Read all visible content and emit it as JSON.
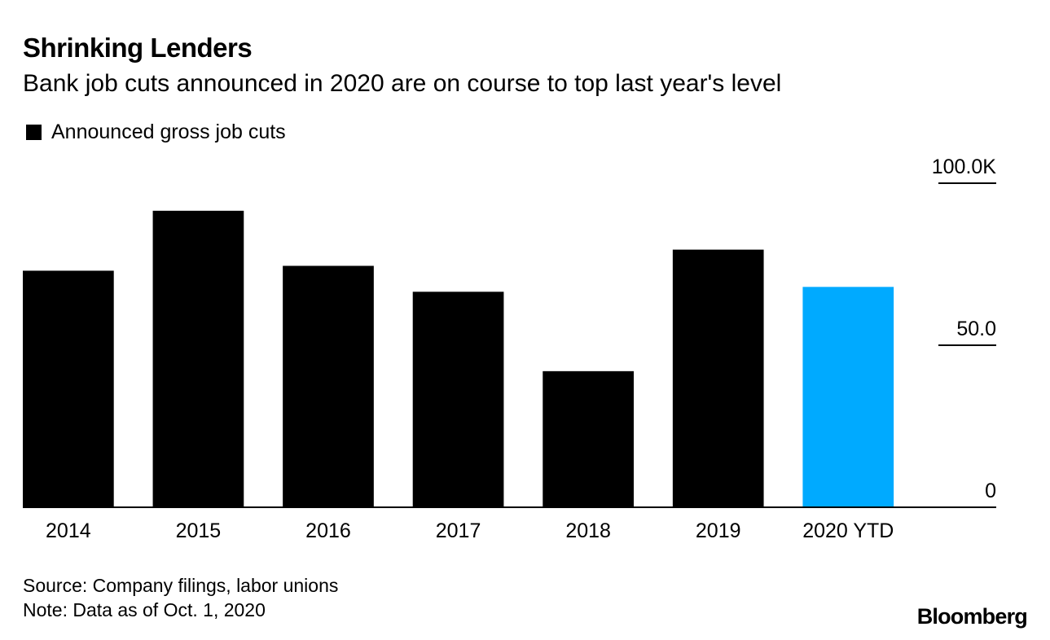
{
  "header": {
    "title": "Shrinking Lenders",
    "subtitle": "Bank job cuts announced in 2020 are on course to top last year's level"
  },
  "legend": {
    "label": "Announced gross job cuts",
    "color": "#000000"
  },
  "footer": {
    "source": "Source: Company filings, labor unions",
    "note": "Note: Data as of Oct. 1, 2020",
    "logo": "Bloomberg"
  },
  "chart_data": {
    "type": "bar",
    "title": "Shrinking Lenders",
    "subtitle": "Bank job cuts announced in 2020 are on course to top last year's level",
    "xlabel": "",
    "ylabel": "",
    "categories": [
      "2014",
      "2015",
      "2016",
      "2017",
      "2018",
      "2019",
      "2020 YTD"
    ],
    "series": [
      {
        "name": "Announced gross job cuts",
        "values": [
          73,
          91.5,
          74.5,
          66.5,
          42,
          79.5,
          68
        ]
      }
    ],
    "colors": [
      "#000000",
      "#000000",
      "#000000",
      "#000000",
      "#000000",
      "#000000",
      "#00aaff"
    ],
    "ylim": [
      0,
      100
    ],
    "yticks": [
      {
        "value": 0,
        "label": "0"
      },
      {
        "value": 50,
        "label": "50.0"
      },
      {
        "value": 100,
        "label": "100.0K"
      }
    ],
    "legend_position": "top-left"
  }
}
